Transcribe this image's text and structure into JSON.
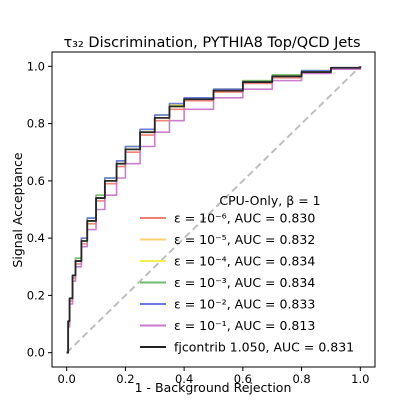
{
  "chart_data": {
    "type": "line",
    "title": "τ₃₂ Discrimination, PYTHIA8 Top/QCD Jets",
    "xlabel": "1 - Background Rejection",
    "ylabel": "Signal Acceptance",
    "xlim": [
      -0.05,
      1.05
    ],
    "ylim": [
      -0.05,
      1.05
    ],
    "xticks": [
      0.0,
      0.2,
      0.4,
      0.6,
      0.8,
      1.0
    ],
    "yticks": [
      0.0,
      0.2,
      0.4,
      0.6,
      0.8,
      1.0
    ],
    "xtick_labels": [
      "0.0",
      "0.2",
      "0.4",
      "0.6",
      "0.8",
      "1.0"
    ],
    "ytick_labels": [
      "0.0",
      "0.2",
      "0.4",
      "0.6",
      "0.8",
      "1.0"
    ],
    "grid": false,
    "legend": {
      "title": "CPU-Only, β = 1",
      "placement": "lower-right"
    },
    "reference_line": {
      "x": [
        0,
        1
      ],
      "y": [
        0,
        1
      ],
      "color": "#bfbfbf",
      "style": "dashed"
    },
    "series": [
      {
        "name": "ε = 10⁻⁶, AUC = 0.830",
        "color": "#f08070",
        "x": [
          0.0,
          0.005,
          0.01,
          0.02,
          0.03,
          0.05,
          0.07,
          0.1,
          0.13,
          0.17,
          0.2,
          0.25,
          0.3,
          0.35,
          0.4,
          0.5,
          0.6,
          0.7,
          0.8,
          0.9,
          1.0
        ],
        "y": [
          0.0,
          0.1,
          0.18,
          0.26,
          0.31,
          0.38,
          0.45,
          0.53,
          0.59,
          0.65,
          0.7,
          0.76,
          0.81,
          0.85,
          0.88,
          0.91,
          0.94,
          0.96,
          0.98,
          0.995,
          1.0
        ]
      },
      {
        "name": "ε = 10⁻⁵, AUC = 0.832",
        "color": "#ffd070",
        "x": [
          0.0,
          0.005,
          0.01,
          0.02,
          0.03,
          0.05,
          0.07,
          0.1,
          0.13,
          0.17,
          0.2,
          0.25,
          0.3,
          0.35,
          0.4,
          0.5,
          0.6,
          0.7,
          0.8,
          0.9,
          1.0
        ],
        "y": [
          0.0,
          0.11,
          0.19,
          0.27,
          0.32,
          0.39,
          0.46,
          0.54,
          0.6,
          0.66,
          0.71,
          0.77,
          0.82,
          0.86,
          0.89,
          0.92,
          0.945,
          0.965,
          0.98,
          0.995,
          1.0
        ]
      },
      {
        "name": "ε = 10⁻⁴, AUC = 0.834",
        "color": "#f0f050",
        "x": [
          0.0,
          0.005,
          0.01,
          0.02,
          0.03,
          0.05,
          0.07,
          0.1,
          0.13,
          0.17,
          0.2,
          0.25,
          0.3,
          0.35,
          0.4,
          0.5,
          0.6,
          0.7,
          0.8,
          0.9,
          1.0
        ],
        "y": [
          0.0,
          0.11,
          0.19,
          0.27,
          0.33,
          0.4,
          0.47,
          0.55,
          0.61,
          0.67,
          0.72,
          0.78,
          0.83,
          0.865,
          0.89,
          0.92,
          0.95,
          0.97,
          0.985,
          0.995,
          1.0
        ]
      },
      {
        "name": "ε = 10⁻³, AUC = 0.834",
        "color": "#70b870",
        "x": [
          0.0,
          0.005,
          0.01,
          0.02,
          0.03,
          0.05,
          0.07,
          0.1,
          0.13,
          0.17,
          0.2,
          0.25,
          0.3,
          0.35,
          0.4,
          0.5,
          0.6,
          0.7,
          0.8,
          0.9,
          1.0
        ],
        "y": [
          0.0,
          0.11,
          0.19,
          0.27,
          0.33,
          0.4,
          0.47,
          0.55,
          0.61,
          0.67,
          0.72,
          0.78,
          0.83,
          0.86,
          0.89,
          0.92,
          0.95,
          0.97,
          0.985,
          0.995,
          1.0
        ]
      },
      {
        "name": "ε = 10⁻², AUC = 0.833",
        "color": "#6a78e0",
        "x": [
          0.0,
          0.005,
          0.01,
          0.02,
          0.03,
          0.05,
          0.07,
          0.1,
          0.13,
          0.17,
          0.2,
          0.25,
          0.3,
          0.35,
          0.4,
          0.5,
          0.6,
          0.7,
          0.8,
          0.9,
          1.0
        ],
        "y": [
          0.0,
          0.11,
          0.19,
          0.27,
          0.32,
          0.4,
          0.47,
          0.54,
          0.61,
          0.67,
          0.72,
          0.78,
          0.83,
          0.87,
          0.89,
          0.92,
          0.945,
          0.965,
          0.985,
          0.995,
          1.0
        ]
      },
      {
        "name": "ε = 10⁻¹, AUC = 0.813",
        "color": "#c878c8",
        "x": [
          0.0,
          0.005,
          0.01,
          0.02,
          0.03,
          0.05,
          0.07,
          0.1,
          0.13,
          0.17,
          0.2,
          0.25,
          0.3,
          0.35,
          0.4,
          0.5,
          0.6,
          0.7,
          0.8,
          0.9,
          1.0
        ],
        "y": [
          0.0,
          0.09,
          0.17,
          0.25,
          0.3,
          0.37,
          0.43,
          0.5,
          0.55,
          0.61,
          0.66,
          0.72,
          0.77,
          0.81,
          0.85,
          0.89,
          0.92,
          0.95,
          0.975,
          0.99,
          1.0
        ]
      },
      {
        "name": "fjcontrib 1.050, AUC = 0.831",
        "color": "#222222",
        "x": [
          0.0,
          0.005,
          0.01,
          0.02,
          0.03,
          0.05,
          0.07,
          0.1,
          0.13,
          0.17,
          0.2,
          0.25,
          0.3,
          0.35,
          0.4,
          0.5,
          0.6,
          0.7,
          0.8,
          0.9,
          1.0
        ],
        "y": [
          0.0,
          0.11,
          0.19,
          0.27,
          0.32,
          0.39,
          0.46,
          0.54,
          0.6,
          0.66,
          0.71,
          0.77,
          0.82,
          0.86,
          0.885,
          0.915,
          0.945,
          0.965,
          0.98,
          0.995,
          1.0
        ]
      }
    ]
  }
}
